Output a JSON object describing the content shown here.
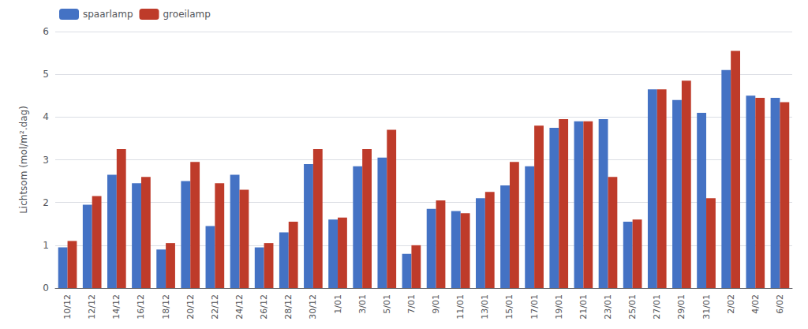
{
  "chart_data": {
    "type": "bar",
    "categories": [
      "10/12",
      "12/12",
      "14/12",
      "16/12",
      "18/12",
      "20/12",
      "22/12",
      "24/12",
      "26/12",
      "28/12",
      "30/12",
      "1/01",
      "3/01",
      "5/01",
      "7/01",
      "9/01",
      "11/01",
      "13/01",
      "15/01",
      "17/01",
      "19/01",
      "21/01",
      "23/01",
      "25/01",
      "27/01",
      "29/01",
      "31/01",
      "2/02",
      "4/02",
      "6/02"
    ],
    "series": [
      {
        "name": "spaarlamp",
        "color": "#4472C4",
        "values": [
          0.95,
          1.95,
          2.65,
          2.45,
          0.9,
          2.5,
          1.45,
          2.65,
          0.95,
          1.3,
          2.9,
          1.6,
          2.85,
          3.05,
          0.8,
          1.85,
          1.8,
          2.1,
          2.4,
          2.85,
          3.75,
          3.9,
          3.95,
          1.55,
          4.65,
          4.4,
          4.1,
          5.1,
          4.5,
          4.45
        ]
      },
      {
        "name": "groeilamp",
        "color": "#BE3B2A",
        "values": [
          1.1,
          2.15,
          3.25,
          2.6,
          1.05,
          2.95,
          2.45,
          2.3,
          1.05,
          1.55,
          3.25,
          1.65,
          3.25,
          3.7,
          1.0,
          2.05,
          1.75,
          2.25,
          2.95,
          3.8,
          3.95,
          3.9,
          2.6,
          1.6,
          4.65,
          4.85,
          2.1,
          5.55,
          4.45,
          4.35
        ]
      }
    ],
    "ylabel": "Lichtsom (mol/m².dag)",
    "ylim": [
      0,
      6
    ],
    "yticks": [
      0,
      1,
      2,
      3,
      4,
      5,
      6
    ],
    "grid": true,
    "legend": "upper left"
  }
}
